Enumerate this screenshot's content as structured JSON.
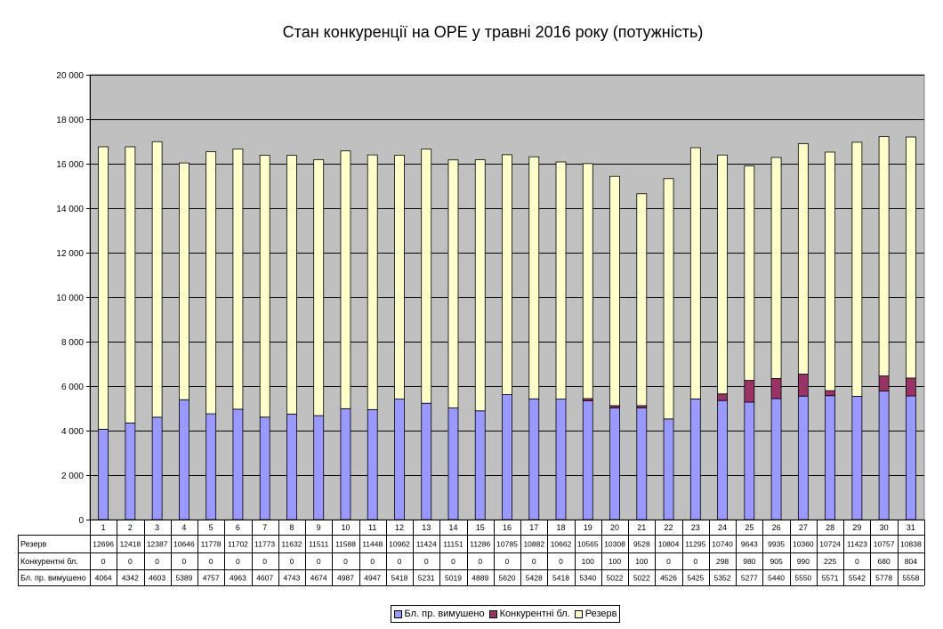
{
  "chart_data": {
    "type": "bar",
    "stacked": true,
    "title": "Стан конкуренції на ОРЕ  у травні 2016 року (потужність)",
    "categories": [
      "1",
      "2",
      "3",
      "4",
      "5",
      "6",
      "7",
      "8",
      "9",
      "10",
      "11",
      "12",
      "13",
      "14",
      "15",
      "16",
      "17",
      "18",
      "19",
      "20",
      "21",
      "22",
      "23",
      "24",
      "25",
      "26",
      "27",
      "28",
      "29",
      "30",
      "31"
    ],
    "ylim": [
      0,
      20000
    ],
    "yticks": [
      "0",
      "2 000",
      "4 000",
      "6 000",
      "8 000",
      "10 000",
      "12 000",
      "14 000",
      "16 000",
      "18 000",
      "20 000"
    ],
    "ytick_values": [
      0,
      2000,
      4000,
      6000,
      8000,
      10000,
      12000,
      14000,
      16000,
      18000,
      20000
    ],
    "grid": true,
    "legend_position": "bottom",
    "series": [
      {
        "name": "Бл. пр. вимушено",
        "color": "#9999ff",
        "values": [
          4064,
          4342,
          4603,
          5389,
          4757,
          4963,
          4607,
          4743,
          4674,
          4987,
          4947,
          5418,
          5231,
          5019,
          4889,
          5620,
          5428,
          5418,
          5340,
          5022,
          5022,
          4526,
          5425,
          5352,
          5277,
          5440,
          5550,
          5571,
          5542,
          5778,
          5558
        ]
      },
      {
        "name": "Конкурентні бл.",
        "color": "#993366",
        "values": [
          0,
          0,
          0,
          0,
          0,
          0,
          0,
          0,
          0,
          0,
          0,
          0,
          0,
          0,
          0,
          0,
          0,
          0,
          100,
          100,
          100,
          0,
          0,
          298,
          980,
          905,
          990,
          225,
          0,
          680,
          804
        ]
      },
      {
        "name": "Резерв",
        "color": "#ffffcc",
        "values": [
          12696,
          12418,
          12387,
          10646,
          11778,
          11702,
          11773,
          11632,
          11511,
          11588,
          11448,
          10962,
          11424,
          11151,
          11286,
          10785,
          10882,
          10662,
          10565,
          10308,
          9528,
          10804,
          11295,
          10740,
          9643,
          9935,
          10360,
          10724,
          11423,
          10757,
          10838
        ]
      }
    ],
    "table_rows": [
      {
        "label": "Резерв",
        "series_index": 2
      },
      {
        "label": "Конкурентні бл.",
        "series_index": 1
      },
      {
        "label": "Бл. пр. вимушено",
        "series_index": 0
      }
    ],
    "legend_order": [
      0,
      1,
      2
    ]
  },
  "colors": {
    "plot_background": "#c0c0c0",
    "gridline": "#000000",
    "axis": "#000000"
  }
}
